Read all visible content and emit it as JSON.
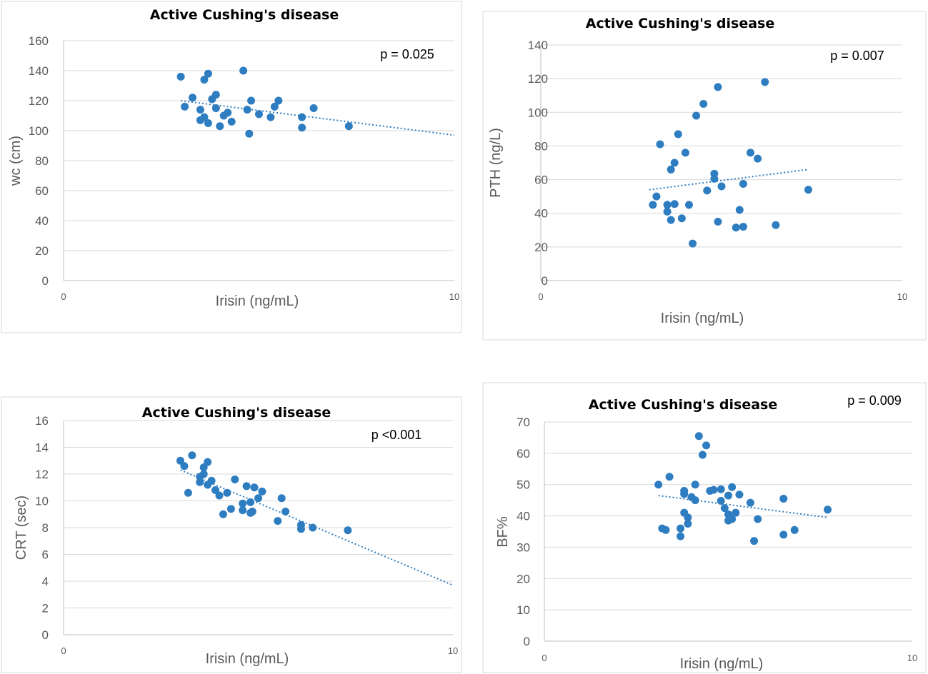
{
  "chart_data": [
    {
      "type": "scatter",
      "title": "Active Cushing's disease",
      "annotation": "p = 0.025",
      "xlabel": "Irisin (ng/mL)",
      "ylabel": "wc (cm)",
      "xlim": [
        0,
        10
      ],
      "ylim": [
        0,
        160
      ],
      "x_ticks": [
        "0",
        "10"
      ],
      "y_ticks": [
        "0",
        "20",
        "40",
        "60",
        "80",
        "100",
        "120",
        "140",
        "160"
      ],
      "grid": "horizontal",
      "color": "#2e7dc1",
      "trendline": {
        "x": [
          3.0,
          10.0
        ],
        "y": [
          120,
          97
        ]
      },
      "points": [
        {
          "x": 3.0,
          "y": 136
        },
        {
          "x": 3.1,
          "y": 116
        },
        {
          "x": 3.3,
          "y": 122
        },
        {
          "x": 3.5,
          "y": 114
        },
        {
          "x": 3.5,
          "y": 107
        },
        {
          "x": 3.6,
          "y": 134
        },
        {
          "x": 3.6,
          "y": 109
        },
        {
          "x": 3.7,
          "y": 138
        },
        {
          "x": 3.7,
          "y": 105
        },
        {
          "x": 3.8,
          "y": 121
        },
        {
          "x": 3.9,
          "y": 124
        },
        {
          "x": 3.9,
          "y": 115
        },
        {
          "x": 4.0,
          "y": 103
        },
        {
          "x": 4.1,
          "y": 110
        },
        {
          "x": 4.2,
          "y": 112
        },
        {
          "x": 4.3,
          "y": 106
        },
        {
          "x": 4.6,
          "y": 140
        },
        {
          "x": 4.7,
          "y": 114
        },
        {
          "x": 4.75,
          "y": 98
        },
        {
          "x": 4.8,
          "y": 120
        },
        {
          "x": 5.0,
          "y": 111
        },
        {
          "x": 5.3,
          "y": 109
        },
        {
          "x": 5.4,
          "y": 116
        },
        {
          "x": 5.5,
          "y": 120
        },
        {
          "x": 6.1,
          "y": 109
        },
        {
          "x": 6.1,
          "y": 102
        },
        {
          "x": 6.4,
          "y": 115
        },
        {
          "x": 7.3,
          "y": 103
        }
      ]
    },
    {
      "type": "scatter",
      "title": "Active Cushing's disease",
      "annotation": "p = 0.007",
      "xlabel": "Irisin (ng/mL)",
      "ylabel": "PTH (ng/L)",
      "xlim": [
        0,
        10
      ],
      "ylim": [
        0,
        140
      ],
      "x_ticks": [
        "0",
        "10"
      ],
      "y_ticks": [
        "0",
        "20",
        "40",
        "60",
        "80",
        "100",
        "120",
        "140"
      ],
      "grid": "horizontal",
      "color": "#2e7dc1",
      "trendline": {
        "x": [
          3.0,
          7.4
        ],
        "y": [
          54,
          66
        ]
      },
      "points": [
        {
          "x": 3.1,
          "y": 45
        },
        {
          "x": 3.2,
          "y": 50
        },
        {
          "x": 3.3,
          "y": 81
        },
        {
          "x": 3.5,
          "y": 41
        },
        {
          "x": 3.5,
          "y": 45
        },
        {
          "x": 3.6,
          "y": 36
        },
        {
          "x": 3.6,
          "y": 66
        },
        {
          "x": 3.7,
          "y": 70
        },
        {
          "x": 3.7,
          "y": 45.5
        },
        {
          "x": 3.8,
          "y": 87
        },
        {
          "x": 3.9,
          "y": 37
        },
        {
          "x": 4.0,
          "y": 76
        },
        {
          "x": 4.1,
          "y": 45
        },
        {
          "x": 4.2,
          "y": 22
        },
        {
          "x": 4.3,
          "y": 98
        },
        {
          "x": 4.5,
          "y": 105
        },
        {
          "x": 4.6,
          "y": 53.5
        },
        {
          "x": 4.8,
          "y": 63.5
        },
        {
          "x": 4.8,
          "y": 60.5
        },
        {
          "x": 4.9,
          "y": 115
        },
        {
          "x": 4.9,
          "y": 35
        },
        {
          "x": 5.0,
          "y": 56
        },
        {
          "x": 5.4,
          "y": 31.5
        },
        {
          "x": 5.5,
          "y": 42
        },
        {
          "x": 5.6,
          "y": 57.5
        },
        {
          "x": 5.6,
          "y": 32
        },
        {
          "x": 5.8,
          "y": 76
        },
        {
          "x": 6.0,
          "y": 72.5
        },
        {
          "x": 6.2,
          "y": 118
        },
        {
          "x": 6.5,
          "y": 33
        },
        {
          "x": 7.4,
          "y": 54
        }
      ]
    },
    {
      "type": "scatter",
      "title": "Active Cushing's disease",
      "annotation": "p <0.001",
      "xlabel": "Irisin (ng/mL)",
      "ylabel": "CRT (sec)",
      "xlim": [
        0,
        10
      ],
      "ylim": [
        0,
        16
      ],
      "x_ticks": [
        "0",
        "10"
      ],
      "y_ticks": [
        "0",
        "2",
        "4",
        "6",
        "8",
        "10",
        "12",
        "14",
        "16"
      ],
      "grid": "horizontal",
      "color": "#2e7dc1",
      "trendline": {
        "x": [
          3.0,
          10.0
        ],
        "y": [
          12.3,
          3.7
        ]
      },
      "points": [
        {
          "x": 3.0,
          "y": 13.0
        },
        {
          "x": 3.1,
          "y": 12.6
        },
        {
          "x": 3.2,
          "y": 10.6
        },
        {
          "x": 3.3,
          "y": 13.4
        },
        {
          "x": 3.5,
          "y": 11.8
        },
        {
          "x": 3.5,
          "y": 11.4
        },
        {
          "x": 3.6,
          "y": 12.5
        },
        {
          "x": 3.6,
          "y": 12.0
        },
        {
          "x": 3.7,
          "y": 12.9
        },
        {
          "x": 3.7,
          "y": 11.2
        },
        {
          "x": 3.8,
          "y": 11.5
        },
        {
          "x": 3.9,
          "y": 10.8
        },
        {
          "x": 4.0,
          "y": 10.4
        },
        {
          "x": 4.1,
          "y": 9.0
        },
        {
          "x": 4.2,
          "y": 10.6
        },
        {
          "x": 4.3,
          "y": 9.4
        },
        {
          "x": 4.4,
          "y": 11.6
        },
        {
          "x": 4.6,
          "y": 9.8
        },
        {
          "x": 4.6,
          "y": 9.3
        },
        {
          "x": 4.7,
          "y": 11.1
        },
        {
          "x": 4.8,
          "y": 9.9
        },
        {
          "x": 4.8,
          "y": 9.1
        },
        {
          "x": 4.85,
          "y": 9.2
        },
        {
          "x": 4.9,
          "y": 11.0
        },
        {
          "x": 5.0,
          "y": 10.2
        },
        {
          "x": 5.1,
          "y": 10.7
        },
        {
          "x": 5.5,
          "y": 8.5
        },
        {
          "x": 5.6,
          "y": 10.2
        },
        {
          "x": 5.7,
          "y": 9.2
        },
        {
          "x": 6.1,
          "y": 8.2
        },
        {
          "x": 6.1,
          "y": 7.9
        },
        {
          "x": 6.4,
          "y": 8.0
        },
        {
          "x": 7.3,
          "y": 7.8
        }
      ]
    },
    {
      "type": "scatter",
      "title": "Active Cushing's disease",
      "annotation": "p = 0.009",
      "xlabel": "Irisin (ng/mL)",
      "ylabel": "BF%",
      "xlim": [
        0,
        10
      ],
      "ylim": [
        0,
        70
      ],
      "x_ticks": [
        "0",
        "10"
      ],
      "y_ticks": [
        "0",
        "10",
        "20",
        "30",
        "40",
        "50",
        "60",
        "70"
      ],
      "grid": "horizontal",
      "color": "#2e7dc1",
      "trendline": {
        "x": [
          3.1,
          7.7
        ],
        "y": [
          46.5,
          39.5
        ]
      },
      "points": [
        {
          "x": 3.1,
          "y": 50
        },
        {
          "x": 3.2,
          "y": 36
        },
        {
          "x": 3.3,
          "y": 35.5
        },
        {
          "x": 3.4,
          "y": 52.5
        },
        {
          "x": 3.7,
          "y": 33.5
        },
        {
          "x": 3.7,
          "y": 36
        },
        {
          "x": 3.8,
          "y": 41
        },
        {
          "x": 3.8,
          "y": 48
        },
        {
          "x": 3.8,
          "y": 47
        },
        {
          "x": 3.9,
          "y": 39.5
        },
        {
          "x": 3.9,
          "y": 37.5
        },
        {
          "x": 4.0,
          "y": 46
        },
        {
          "x": 4.1,
          "y": 45
        },
        {
          "x": 4.1,
          "y": 50
        },
        {
          "x": 4.2,
          "y": 65.5
        },
        {
          "x": 4.3,
          "y": 59.5
        },
        {
          "x": 4.4,
          "y": 62.5
        },
        {
          "x": 4.5,
          "y": 48
        },
        {
          "x": 4.6,
          "y": 48.3
        },
        {
          "x": 4.8,
          "y": 48.5
        },
        {
          "x": 4.8,
          "y": 44.8
        },
        {
          "x": 4.9,
          "y": 42.5
        },
        {
          "x": 5.0,
          "y": 40.5
        },
        {
          "x": 5.0,
          "y": 46.5
        },
        {
          "x": 5.0,
          "y": 38.5
        },
        {
          "x": 5.1,
          "y": 49.2
        },
        {
          "x": 5.1,
          "y": 39
        },
        {
          "x": 5.2,
          "y": 41
        },
        {
          "x": 5.3,
          "y": 46.8
        },
        {
          "x": 5.6,
          "y": 44.2
        },
        {
          "x": 5.7,
          "y": 32
        },
        {
          "x": 5.8,
          "y": 39
        },
        {
          "x": 6.5,
          "y": 45.5
        },
        {
          "x": 6.5,
          "y": 34
        },
        {
          "x": 6.8,
          "y": 35.5
        },
        {
          "x": 7.7,
          "y": 42
        }
      ]
    }
  ]
}
